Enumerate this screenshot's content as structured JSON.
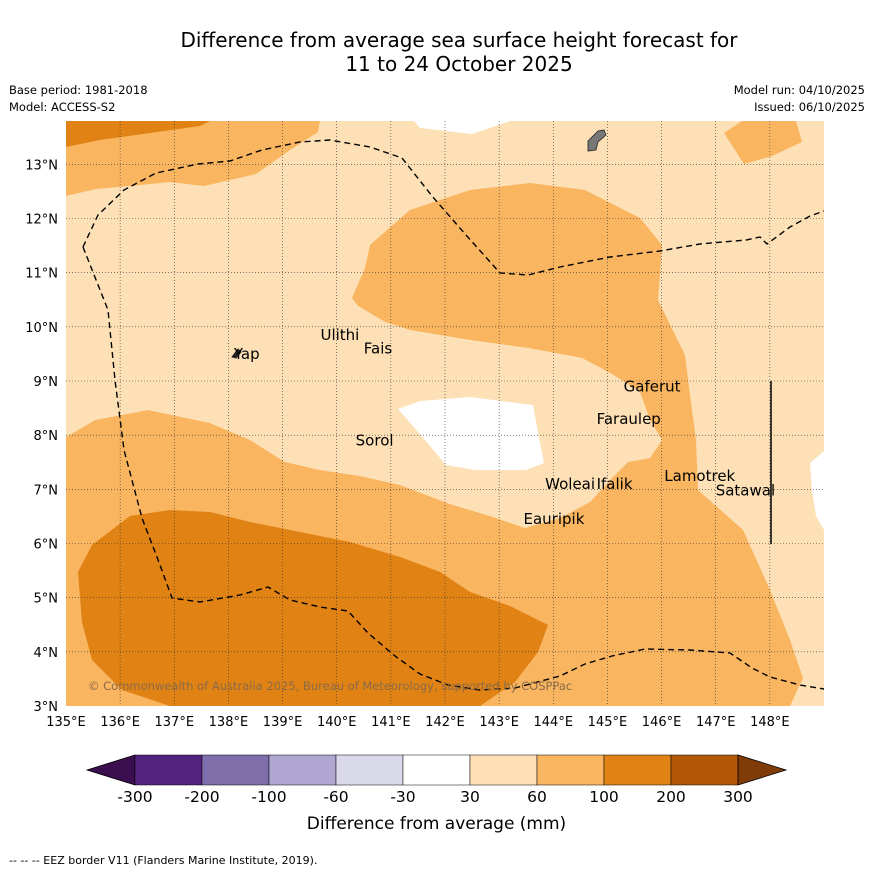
{
  "header": {
    "title_line1": "Difference from average sea surface height forecast for",
    "title_line2": "11 to 24 October 2025",
    "base_period": "Base period: 1981-2018",
    "model": "Model: ACCESS-S2",
    "model_run": "Model run: 04/10/2025",
    "issued": "Issued: 06/10/2025"
  },
  "map": {
    "lat_labels": [
      "13°N",
      "12°N",
      "11°N",
      "10°N",
      "9°N",
      "8°N",
      "7°N",
      "6°N",
      "5°N",
      "4°N",
      "3°N"
    ],
    "lon_labels": [
      "135°E",
      "136°E",
      "137°E",
      "138°E",
      "139°E",
      "140°E",
      "141°E",
      "142°E",
      "143°E",
      "144°E",
      "145°E",
      "146°E",
      "147°E",
      "148°E"
    ],
    "places": [
      {
        "name": "Yap"
      },
      {
        "name": "Ulithi"
      },
      {
        "name": "Fais"
      },
      {
        "name": "Gaferut"
      },
      {
        "name": "Faraulep"
      },
      {
        "name": "Sorol"
      },
      {
        "name": "Woleai"
      },
      {
        "name": "Ifalik"
      },
      {
        "name": "Lamotrek"
      },
      {
        "name": "Satawal"
      },
      {
        "name": "Eauripik"
      }
    ],
    "copyright": "© Commonwealth of Australia 2025, Bureau of Meteorology, supported by COSPPac"
  },
  "colorbar": {
    "ticks": [
      "-300",
      "-200",
      "-100",
      "-60",
      "-30",
      "30",
      "60",
      "100",
      "200",
      "300"
    ],
    "colors": [
      "#3b0f4f",
      "#52227f",
      "#7e6fab",
      "#afa7d1",
      "#dad9ea",
      "#ffffff",
      "#fde0b6",
      "#f9b55f",
      "#e08214",
      "#b35806",
      "#7f3b08"
    ],
    "label": "Difference from average (mm)"
  },
  "footer": "--  --  -- EEZ border V11 (Flanders Marine Institute, 2019)."
}
